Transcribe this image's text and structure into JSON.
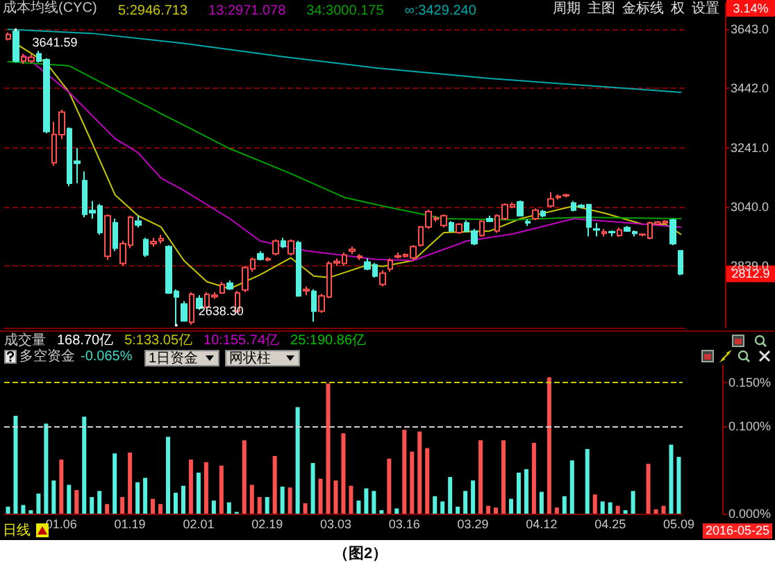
{
  "chart_data": [
    {
      "type": "candlestick",
      "title": "成本均线(CYC)",
      "legend": "top left",
      "grid": "y",
      "tick_labels": "y",
      "marker": "none",
      "ylim": [
        2630,
        3733
      ],
      "yticks": [
        {
          "value": 2839,
          "label": "2839.0"
        },
        {
          "value": 3040,
          "label": "3040.0"
        },
        {
          "value": 3241,
          "label": "3241.0"
        },
        {
          "value": 3442,
          "label": "3442.0"
        },
        {
          "value": 3643,
          "label": "3643.0"
        }
      ],
      "colors": [
        "#ff5050",
        "#54f0e0",
        "#ff5050",
        "#ff5050",
        "#54f0e0",
        "#54f0e0",
        "#ff5050",
        "#ff5050",
        "#54f0e0",
        "#54f0e0",
        "#54f0e0",
        "#54f0e0",
        "#54f0e0",
        "#ff5050",
        "#54f0e0",
        "#ff5050",
        "#ff5050",
        "#54f0e0",
        "#54f0e0",
        "#ff5050",
        "#ff5050",
        "#54f0e0",
        "#54f0e0",
        "#54f0e0",
        "#ff5050",
        "#54f0e0",
        "#ff5050",
        "#ff5050",
        "#ff5050",
        "#54f0e0",
        "#ff5050",
        "#ff5050",
        "#ff5050",
        "#54f0e0",
        "#ff5050",
        "#ff5050",
        "#54f0e0",
        "#ff5050",
        "#54f0e0",
        "#ff5050",
        "#54f0e0",
        "#ff5050",
        "#ff5050",
        "#ff5050",
        "#ff5050",
        "#ff5050",
        "#ff5050",
        "#54f0e0",
        "#54f0e0",
        "#ff5050",
        "#ff5050",
        "#ff5050",
        "#ff5050",
        "#ff5050",
        "#ff5050",
        "#ff5050",
        "#ff5050",
        "#ff5050",
        "#54f0e0",
        "#ff5050",
        "#54f0e0",
        "#54f0e0",
        "#ff5050",
        "#54f0e0",
        "#ff5050",
        "#ff5050",
        "#ff5050",
        "#54f0e0",
        "#54f0e0",
        "#ff5050",
        "#54f0e0",
        "#ff5050",
        "#ff5050",
        "#ff5050",
        "#54f0e0",
        "#54f0e0",
        "#54f0e0",
        "#54f0e0",
        "#ff5050",
        "#54f0e0",
        "#ff5050",
        "#54f0e0",
        "#54f0e0",
        "#ff5050",
        "#ff5050",
        "#ff5050",
        "#ff5050",
        "#54f0e0",
        "#54f0e0"
      ],
      "categories": [
        null,
        null,
        null,
        null,
        null,
        null,
        null,
        null,
        null,
        null,
        null,
        null,
        null,
        null,
        null,
        null,
        null,
        null,
        null,
        null,
        null,
        null,
        null,
        null,
        null,
        null,
        null,
        null,
        null,
        null,
        null,
        null,
        null,
        null,
        null,
        null,
        null,
        null,
        null,
        null,
        null,
        null,
        null,
        null,
        null,
        null,
        null,
        null,
        null,
        null,
        null,
        null,
        null,
        null,
        null,
        null,
        null,
        null,
        null,
        null,
        null,
        null,
        null,
        null,
        null,
        null,
        null,
        null,
        null,
        null,
        null,
        null,
        null,
        null,
        null,
        null,
        null,
        null,
        null,
        null,
        null,
        null,
        null,
        null,
        null,
        null,
        null,
        null,
        null
      ],
      "ohlc": [
        [
          3610,
          3632,
          3605,
          3625
        ],
        [
          3636,
          3641.59,
          3530,
          3535
        ],
        [
          3535,
          3560,
          3525,
          3550
        ],
        [
          3535,
          3558,
          3528,
          3548
        ],
        [
          3560,
          3570,
          3530,
          3535
        ],
        [
          3540,
          3545,
          3290,
          3296
        ],
        [
          3190,
          3329,
          3180,
          3286
        ],
        [
          3285,
          3370,
          3270,
          3362
        ],
        [
          3305,
          3310,
          3110,
          3120
        ],
        [
          3195,
          3240,
          3120,
          3188
        ],
        [
          3129,
          3160,
          3005,
          3015
        ],
        [
          3028,
          3060,
          3000,
          3020
        ],
        [
          3043,
          3050,
          2945,
          2953
        ],
        [
          2872,
          3015,
          2860,
          3010
        ],
        [
          2986,
          3000,
          2890,
          2900
        ],
        [
          2848,
          2925,
          2840,
          2915
        ],
        [
          2910,
          3010,
          2900,
          3005
        ],
        [
          2992,
          3010,
          2970,
          2978
        ],
        [
          2929,
          2935,
          2870,
          2877
        ],
        [
          2915,
          2935,
          2905,
          2922
        ],
        [
          2925,
          2945,
          2915,
          2932
        ],
        [
          2905,
          2910,
          2745,
          2748
        ],
        [
          2753,
          2760,
          2638.3,
          2734
        ],
        [
          2710,
          2720,
          2650,
          2653
        ],
        [
          2648,
          2750,
          2640,
          2743
        ],
        [
          2729,
          2740,
          2690,
          2696
        ],
        [
          2700,
          2750,
          2695,
          2743
        ],
        [
          2735,
          2750,
          2728,
          2740
        ],
        [
          2748,
          2785,
          2745,
          2777
        ],
        [
          2781,
          2790,
          2758,
          2762
        ],
        [
          2686,
          2755,
          2680,
          2748
        ],
        [
          2758,
          2840,
          2750,
          2834
        ],
        [
          2829,
          2868,
          2820,
          2862
        ],
        [
          2881,
          2890,
          2858,
          2862
        ],
        [
          2860,
          2870,
          2855,
          2864
        ],
        [
          2881,
          2930,
          2875,
          2924
        ],
        [
          2924,
          2935,
          2900,
          2905
        ],
        [
          2881,
          2930,
          2875,
          2924
        ],
        [
          2919,
          2925,
          2735,
          2738
        ],
        [
          2755,
          2770,
          2740,
          2760
        ],
        [
          2753,
          2760,
          2650,
          2686
        ],
        [
          2686,
          2745,
          2680,
          2738
        ],
        [
          2734,
          2855,
          2730,
          2848
        ],
        [
          2850,
          2865,
          2840,
          2855
        ],
        [
          2848,
          2885,
          2840,
          2877
        ],
        [
          2890,
          2905,
          2880,
          2896
        ],
        [
          2868,
          2880,
          2860,
          2873
        ],
        [
          2853,
          2865,
          2825,
          2829
        ],
        [
          2843,
          2850,
          2800,
          2805
        ],
        [
          2777,
          2825,
          2770,
          2815
        ],
        [
          2829,
          2865,
          2820,
          2858
        ],
        [
          2870,
          2885,
          2865,
          2874
        ],
        [
          2872,
          2882,
          2868,
          2878
        ],
        [
          2867,
          2910,
          2860,
          2905
        ],
        [
          2910,
          2975,
          2905,
          2972
        ],
        [
          2972,
          3030,
          2965,
          3024
        ],
        [
          2998,
          3010,
          2990,
          3002
        ],
        [
          2977,
          3015,
          2970,
          3010
        ],
        [
          2986,
          2992,
          2955,
          2958
        ],
        [
          2953,
          2985,
          2948,
          2981
        ],
        [
          2986,
          2995,
          2955,
          2958
        ],
        [
          2958,
          2965,
          2910,
          2915
        ],
        [
          2943,
          2995,
          2938,
          2991
        ],
        [
          3000,
          3010,
          2988,
          2991
        ],
        [
          2958,
          3015,
          2952,
          3010
        ],
        [
          3000,
          3052,
          2995,
          3048
        ],
        [
          3040,
          3055,
          3035,
          3048
        ],
        [
          3057,
          3062,
          3008,
          3010
        ],
        [
          2990,
          2998,
          2975,
          2986
        ],
        [
          3000,
          3035,
          2995,
          3029
        ],
        [
          3024,
          3030,
          3005,
          3010
        ],
        [
          3043,
          3090,
          3038,
          3067
        ],
        [
          3072,
          3082,
          3065,
          3076
        ],
        [
          3078,
          3085,
          3072,
          3081
        ],
        [
          3053,
          3060,
          3025,
          3029
        ],
        [
          3045,
          3050,
          3035,
          3040
        ],
        [
          3048,
          3050,
          2940,
          2972
        ],
        [
          2965,
          2985,
          2940,
          2962
        ],
        [
          2950,
          2965,
          2940,
          2955
        ],
        [
          2956,
          2960,
          2940,
          2953
        ],
        [
          2943,
          2970,
          2938,
          2962
        ],
        [
          2970,
          2975,
          2955,
          2958
        ],
        [
          2955,
          2960,
          2940,
          2950
        ],
        [
          2945,
          2950,
          2940,
          2947
        ],
        [
          2934,
          2990,
          2930,
          2986
        ],
        [
          2982,
          2992,
          2978,
          2988
        ],
        [
          2986,
          2995,
          2982,
          2991
        ],
        [
          2996,
          3000,
          2910,
          2915
        ],
        [
          2891,
          2893,
          2808,
          2812.9
        ]
      ],
      "series": [
        {
          "type": "line",
          "name": "5:2946.713",
          "color": "#c8c800",
          "values": [
            null,
            3595,
            null,
            null,
            null,
            3529,
            null,
            null,
            3429,
            null,
            null,
            3257,
            null,
            null,
            3081,
            null,
            null,
            3010,
            null,
            null,
            2972,
            null,
            null,
            2858,
            null,
            null,
            2786,
            null,
            null,
            2762,
            null,
            null,
            null,
            2810,
            null,
            null,
            null,
            2867,
            null,
            null,
            2805,
            null,
            2800,
            null,
            null,
            null,
            null,
            2843,
            null,
            2838,
            null,
            null,
            null,
            2858,
            null,
            null,
            null,
            2953,
            null,
            null,
            null,
            null,
            null,
            2958,
            null,
            null,
            null,
            3000,
            null,
            null,
            null,
            null,
            null,
            null,
            3043,
            null,
            null,
            null,
            3019,
            null,
            null,
            null,
            null,
            2981,
            null,
            null,
            2981,
            null,
            2947
          ]
        },
        {
          "type": "line",
          "name": "13:2971.078",
          "color": "#c000c0",
          "values": [
            null,
            null,
            3557,
            null,
            null,
            null,
            null,
            null,
            3429,
            null,
            null,
            null,
            null,
            null,
            3272,
            null,
            null,
            3224,
            null,
            null,
            3138,
            null,
            null,
            3096,
            null,
            null,
            null,
            null,
            null,
            3000,
            null,
            null,
            null,
            2924,
            null,
            null,
            null,
            null,
            null,
            2891,
            null,
            null,
            null,
            null,
            null,
            null,
            null,
            null,
            2862,
            null,
            null,
            null,
            null,
            2858,
            null,
            null,
            null,
            null,
            null,
            null,
            2924,
            null,
            null,
            null,
            null,
            null,
            2948,
            null,
            null,
            null,
            null,
            null,
            null,
            null,
            3000,
            null,
            null,
            null,
            null,
            null,
            null,
            2986,
            null,
            null,
            null,
            null,
            null,
            null,
            2971
          ]
        },
        {
          "type": "line",
          "name": "34:3000.175",
          "color": "#00a000",
          "values": [
            3533,
            null,
            null,
            null,
            null,
            null,
            null,
            null,
            3519,
            null,
            null,
            null,
            null,
            null,
            3438,
            null,
            null,
            null,
            null,
            null,
            3357,
            null,
            null,
            null,
            null,
            null,
            null,
            null,
            null,
            3238,
            null,
            null,
            null,
            null,
            null,
            null,
            null,
            3153,
            null,
            null,
            null,
            null,
            null,
            null,
            3072,
            null,
            null,
            null,
            null,
            3043,
            null,
            null,
            null,
            null,
            null,
            null,
            null,
            3000,
            null,
            null,
            null,
            null,
            null,
            null,
            null,
            null,
            2996,
            null,
            null,
            null,
            null,
            null,
            null,
            null,
            null,
            3005,
            null,
            null,
            null,
            null,
            null,
            null,
            null,
            null,
            null,
            null,
            null,
            null,
            3000
          ]
        },
        {
          "type": "line",
          "name": "∞:3429.240",
          "color": "#00a8a8",
          "values": [
            3643,
            null,
            null,
            null,
            null,
            null,
            null,
            null,
            null,
            null,
            null,
            3629,
            null,
            null,
            null,
            null,
            null,
            null,
            null,
            null,
            null,
            null,
            null,
            3595,
            null,
            null,
            null,
            null,
            null,
            null,
            null,
            null,
            null,
            null,
            null,
            null,
            3550,
            null,
            null,
            null,
            null,
            null,
            null,
            null,
            null,
            null,
            null,
            null,
            3512,
            null,
            null,
            null,
            null,
            null,
            null,
            null,
            null,
            null,
            null,
            null,
            null,
            null,
            null,
            3476,
            null,
            null,
            null,
            null,
            null,
            null,
            null,
            null,
            null,
            null,
            null,
            null,
            null,
            null,
            3448,
            null,
            null,
            null,
            null,
            null,
            null,
            null,
            null,
            null,
            3429
          ]
        }
      ],
      "annotations": [
        "3641.59",
        "2638.30",
        "2812.9",
        "3.14%",
        "周期",
        "主图",
        "金标线",
        "权",
        "设置"
      ]
    },
    {
      "type": "bar",
      "title": "多空资金",
      "subtitle": "-0.065%",
      "ylim": [
        0,
        0.17
      ],
      "yticks": [
        {
          "value": 0,
          "label": "0.000%"
        },
        {
          "value": 0.1,
          "label": "0.100%"
        },
        {
          "value": 0.15,
          "label": "0.150%"
        }
      ],
      "categories": [
        null,
        null,
        null,
        null,
        null,
        null,
        null,
        "01.06",
        null,
        null,
        null,
        null,
        null,
        null,
        null,
        null,
        "01.19",
        null,
        null,
        null,
        null,
        null,
        null,
        null,
        null,
        "02.01",
        null,
        null,
        null,
        null,
        null,
        null,
        null,
        null,
        "02.19",
        null,
        null,
        null,
        null,
        null,
        null,
        null,
        null,
        "03.03",
        null,
        null,
        null,
        null,
        null,
        null,
        null,
        null,
        "03.16",
        null,
        null,
        null,
        null,
        null,
        null,
        null,
        null,
        "03.29",
        null,
        null,
        null,
        null,
        null,
        null,
        null,
        null,
        "04.12",
        null,
        null,
        null,
        null,
        null,
        null,
        null,
        null,
        "04.25",
        null,
        null,
        null,
        null,
        null,
        null,
        null,
        null,
        "05.09"
      ],
      "values": [
        0.008,
        0.112,
        0.01,
        0.004,
        0.023,
        0.103,
        0.038,
        0.062,
        0.033,
        0.027,
        0.111,
        0.019,
        0.026,
        0.011,
        0.069,
        0.019,
        0.07,
        0.036,
        0.041,
        0.017,
        0.011,
        0.088,
        0.024,
        0.032,
        0.062,
        0.047,
        0.059,
        0.015,
        0.055,
        0.013,
        0.002,
        0.084,
        0.033,
        0.019,
        0.019,
        0.066,
        0.031,
        0.03,
        0.122,
        0.012,
        0.058,
        0.04,
        0.149,
        0.038,
        0.092,
        0.032,
        0.015,
        0.029,
        0.026,
        0.004,
        0.063,
        0.006,
        0.096,
        0.071,
        0.094,
        0.075,
        0.02,
        0.014,
        0.042,
        0.008,
        0.026,
        0.038,
        0.084,
        0.009,
        0.007,
        0.084,
        0.017,
        0.047,
        0.051,
        0.081,
        0.025,
        0.156,
        0.007,
        0.02,
        0.061,
        0,
        0.074,
        0.022,
        0.014,
        0.013,
        0.009,
        0.004,
        0.026,
        0,
        0.057,
        0.005,
        0.009,
        0.079,
        0.065
      ],
      "colors": [
        "#54f0e0",
        "#54f0e0",
        "#54f0e0",
        "#54f0e0",
        "#54f0e0",
        "#54f0e0",
        "#54f0e0",
        "#ff5050",
        "#54f0e0",
        "#ff5050",
        "#54f0e0",
        "#54f0e0",
        "#54f0e0",
        "#ff5050",
        "#54f0e0",
        "#ff5050",
        "#ff5050",
        "#54f0e0",
        "#54f0e0",
        "#ff5050",
        "#ff5050",
        "#54f0e0",
        "#54f0e0",
        "#54f0e0",
        "#ff5050",
        "#54f0e0",
        "#ff5050",
        "#54f0e0",
        "#ff5050",
        "#54f0e0",
        "#54f0e0",
        "#ff5050",
        "#ff5050",
        "#ff5050",
        "#54f0e0",
        "#ff5050",
        "#54f0e0",
        "#ff5050",
        "#54f0e0",
        "#ff5050",
        "#54f0e0",
        "#ff5050",
        "#ff5050",
        "#ff5050",
        "#ff5050",
        "#ff5050",
        "#54f0e0",
        "#54f0e0",
        "#54f0e0",
        "#54f0e0",
        "#ff5050",
        "#54f0e0",
        "#ff5050",
        "#ff5050",
        "#ff5050",
        "#ff5050",
        "#54f0e0",
        "#54f0e0",
        "#54f0e0",
        "#54f0e0",
        "#54f0e0",
        "#54f0e0",
        "#ff5050",
        "#ff5050",
        "#ff5050",
        "#ff5050",
        "#54f0e0",
        "#54f0e0",
        "#54f0e0",
        "#ff5050",
        "#54f0e0",
        "#ff5050",
        "#ff5050",
        "#54f0e0",
        "#54f0e0",
        "#54f0e0",
        "#54f0e0",
        "#ff5050",
        "#54f0e0",
        "#54f0e0",
        "#ff5050",
        "#54f0e0",
        "#54f0e0",
        "#54f0e0",
        "#ff5050",
        "#ff5050",
        "#ff5050",
        "#54f0e0",
        "#54f0e0"
      ],
      "ref_lines": [
        {
          "axis": "y",
          "value": 0.15,
          "color": "#c8c800",
          "line_style": "dashed"
        },
        {
          "axis": "y",
          "value": 0.1,
          "color": "#d0d0d0",
          "line_style": "dashed"
        }
      ],
      "annotations": [
        "成交量",
        "168.70亿",
        "5:133.05亿",
        "10:155.74亿",
        "25:190.86亿",
        "1日资金",
        "网状柱",
        "日线",
        "2016-05-25",
        "（图2）"
      ]
    }
  ]
}
